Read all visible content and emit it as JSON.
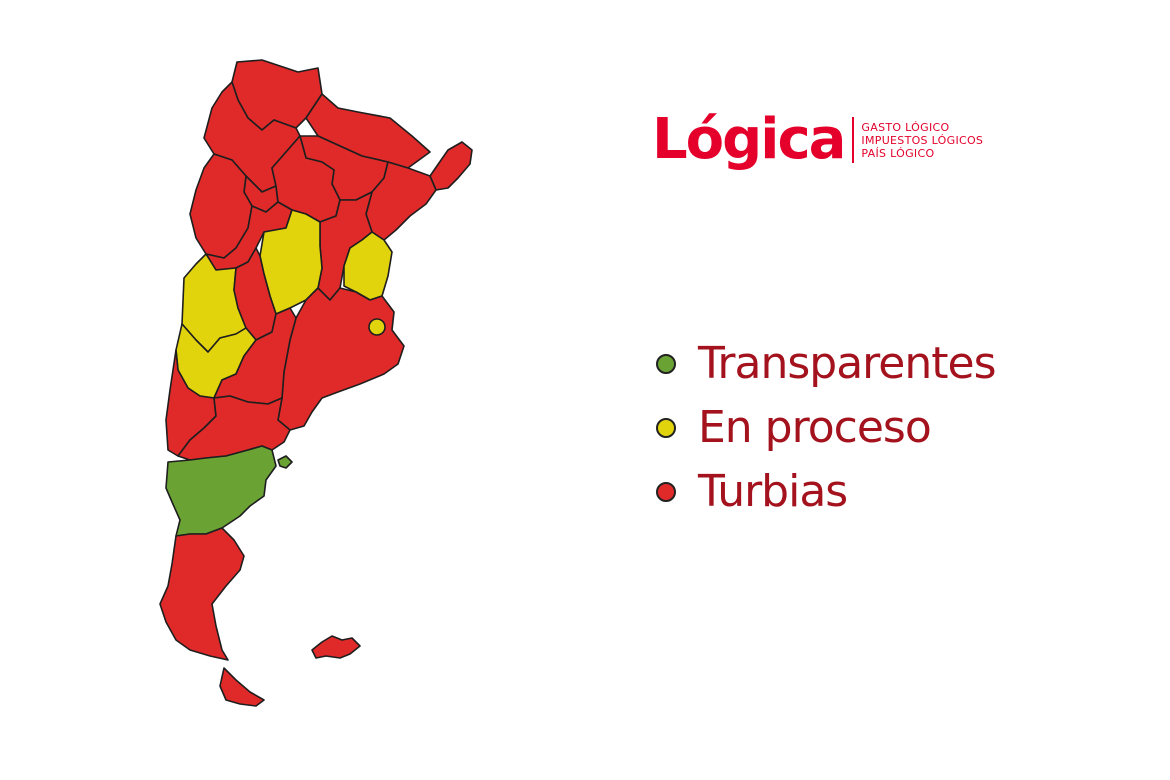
{
  "logo": {
    "word": "Lógica",
    "taglines": [
      "GASTO LÓGICO",
      "IMPUESTOS LÓGICOS",
      "PAÍS LÓGICO"
    ],
    "color": "#e4002b"
  },
  "legend": {
    "text_color": "#a3121d",
    "items": [
      {
        "label": "Transparentes",
        "color": "#6aa334",
        "status": "transparent"
      },
      {
        "label": "En proceso",
        "color": "#e2d40c",
        "status": "in-progress"
      },
      {
        "label": "Turbias",
        "color": "#e02a2a",
        "status": "murky"
      }
    ]
  },
  "map": {
    "status_colors": {
      "transparent": "#6aa334",
      "in-progress": "#e2d40c",
      "murky": "#e02a2a"
    },
    "provinces": [
      {
        "name": "jujuy",
        "status": "murky"
      },
      {
        "name": "salta",
        "status": "murky"
      },
      {
        "name": "formosa",
        "status": "murky"
      },
      {
        "name": "misiones",
        "status": "murky"
      },
      {
        "name": "chaco",
        "status": "murky"
      },
      {
        "name": "tucuman",
        "status": "murky"
      },
      {
        "name": "catamarca",
        "status": "murky"
      },
      {
        "name": "santiago-del-estero",
        "status": "murky"
      },
      {
        "name": "corrientes",
        "status": "murky"
      },
      {
        "name": "la-rioja",
        "status": "murky"
      },
      {
        "name": "santa-fe",
        "status": "murky"
      },
      {
        "name": "entre-rios",
        "status": "in-progress"
      },
      {
        "name": "cordoba",
        "status": "in-progress"
      },
      {
        "name": "san-juan",
        "status": "in-progress"
      },
      {
        "name": "san-luis",
        "status": "murky"
      },
      {
        "name": "mendoza",
        "status": "in-progress"
      },
      {
        "name": "buenos-aires",
        "status": "murky"
      },
      {
        "name": "caba",
        "status": "in-progress"
      },
      {
        "name": "la-pampa",
        "status": "murky"
      },
      {
        "name": "neuquen",
        "status": "murky"
      },
      {
        "name": "rio-negro",
        "status": "murky"
      },
      {
        "name": "chubut",
        "status": "transparent"
      },
      {
        "name": "santa-cruz",
        "status": "murky"
      },
      {
        "name": "tierra-del-fuego",
        "status": "murky"
      },
      {
        "name": "islas-malvinas",
        "status": "murky"
      }
    ]
  }
}
